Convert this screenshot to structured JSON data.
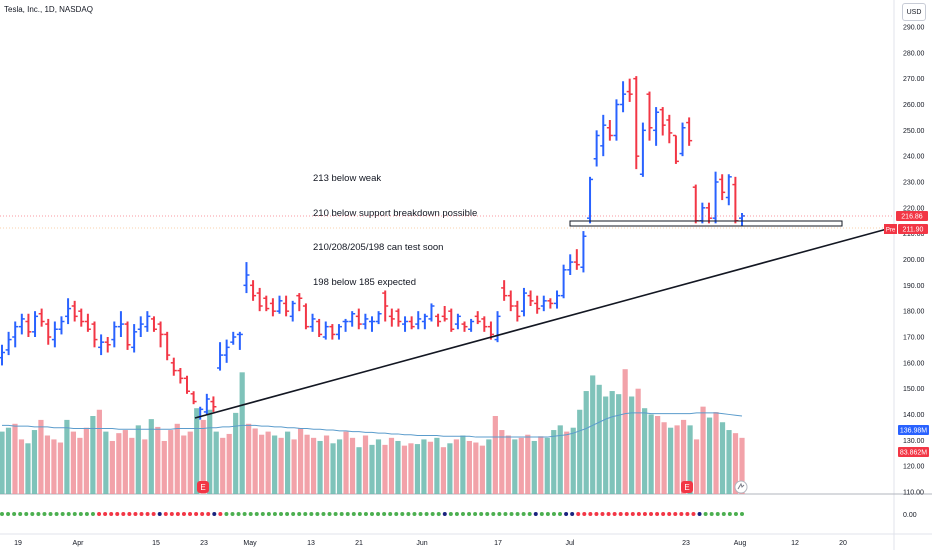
{
  "header": {
    "title": "Tesla, Inc., 1D, NASDAQ",
    "currency": "USD"
  },
  "annotation": {
    "lines": [
      "213 below weak",
      "210 below support breakdown possible",
      "210/208/205/198 can test soon",
      "198 below 185 expected"
    ]
  },
  "chart_data": {
    "type": "ohlc",
    "title": "Tesla, Inc., 1D, NASDAQ",
    "price_axis": {
      "ticks": [
        "290.00",
        "280.00",
        "270.00",
        "260.00",
        "250.00",
        "240.00",
        "230.00",
        "220.00",
        "210.00",
        "200.00",
        "190.00",
        "180.00",
        "170.00",
        "160.00",
        "150.00",
        "140.00",
        "130.00",
        "120.00",
        "110.00"
      ],
      "range": [
        106,
        294
      ]
    },
    "time_axis": {
      "ticks": [
        "19",
        "Apr",
        "15",
        "23",
        "May",
        "13",
        "21",
        "Jun",
        "17",
        "Jul",
        "23",
        "Aug",
        "12",
        "20"
      ]
    },
    "labels": {
      "last_price": "216.86",
      "pre_market_tag": "Pre",
      "pre_market_price": "211.90",
      "volume_label": "136.98M",
      "volume_ma_label": "83.862M",
      "oscillator_value": "0.00"
    },
    "colors": {
      "up": "#2962ff",
      "down": "#f23645",
      "vol_up": "#68b8ae",
      "vol_down": "#f0929a",
      "vol_ma": "#5b9ccc",
      "trendline": "#131722",
      "last_price": "#f23645",
      "pre_market": "#f23645",
      "dot_green": "#4caf50",
      "dot_red": "#f23645",
      "dot_navy": "#1a237e"
    },
    "bars": [
      {
        "o": 162,
        "h": 167,
        "l": 159,
        "c": 164
      },
      {
        "o": 165,
        "h": 172,
        "l": 163,
        "c": 169
      },
      {
        "o": 170,
        "h": 176,
        "l": 166,
        "c": 174
      },
      {
        "o": 174,
        "h": 179,
        "l": 171,
        "c": 177
      },
      {
        "o": 176,
        "h": 179,
        "l": 170,
        "c": 172
      },
      {
        "o": 172,
        "h": 180,
        "l": 170,
        "c": 178
      },
      {
        "o": 179,
        "h": 181,
        "l": 174,
        "c": 176
      },
      {
        "o": 175,
        "h": 177,
        "l": 167,
        "c": 170
      },
      {
        "o": 169,
        "h": 176,
        "l": 166,
        "c": 173
      },
      {
        "o": 173,
        "h": 178,
        "l": 171,
        "c": 176
      },
      {
        "o": 178,
        "h": 185,
        "l": 175,
        "c": 181
      },
      {
        "o": 182,
        "h": 184,
        "l": 176,
        "c": 178
      },
      {
        "o": 180,
        "h": 181,
        "l": 174,
        "c": 176
      },
      {
        "o": 176,
        "h": 179,
        "l": 172,
        "c": 173
      },
      {
        "o": 175,
        "h": 176,
        "l": 166,
        "c": 169
      },
      {
        "o": 166,
        "h": 171,
        "l": 163,
        "c": 168
      },
      {
        "o": 168,
        "h": 170,
        "l": 164,
        "c": 167
      },
      {
        "o": 169,
        "h": 176,
        "l": 166,
        "c": 174
      },
      {
        "o": 174,
        "h": 180,
        "l": 170,
        "c": 175
      },
      {
        "o": 175,
        "h": 176,
        "l": 165,
        "c": 167
      },
      {
        "o": 166,
        "h": 175,
        "l": 164,
        "c": 172
      },
      {
        "o": 173,
        "h": 178,
        "l": 170,
        "c": 175
      },
      {
        "o": 174,
        "h": 180,
        "l": 172,
        "c": 178
      },
      {
        "o": 177,
        "h": 178,
        "l": 172,
        "c": 173
      },
      {
        "o": 175,
        "h": 176,
        "l": 166,
        "c": 171
      },
      {
        "o": 171,
        "h": 172,
        "l": 161,
        "c": 163
      },
      {
        "o": 160,
        "h": 162,
        "l": 155,
        "c": 157
      },
      {
        "o": 157,
        "h": 158,
        "l": 152,
        "c": 154
      },
      {
        "o": 154,
        "h": 155,
        "l": 148,
        "c": 149
      },
      {
        "o": 148,
        "h": 149,
        "l": 144,
        "c": 145
      },
      {
        "o": 139,
        "h": 143,
        "l": 138,
        "c": 142
      },
      {
        "o": 141,
        "h": 148,
        "l": 140,
        "c": 146
      },
      {
        "o": 145,
        "h": 147,
        "l": 141,
        "c": 143
      },
      {
        "o": 158,
        "h": 168,
        "l": 157,
        "c": 163
      },
      {
        "o": 163,
        "h": 169,
        "l": 160,
        "c": 166
      },
      {
        "o": 168,
        "h": 172,
        "l": 167,
        "c": 170
      },
      {
        "o": 171,
        "h": 172,
        "l": 165,
        "c": 171
      },
      {
        "o": 190,
        "h": 199,
        "l": 187,
        "c": 194
      },
      {
        "o": 190,
        "h": 192,
        "l": 184,
        "c": 186
      },
      {
        "o": 187,
        "h": 189,
        "l": 180,
        "c": 182
      },
      {
        "o": 185,
        "h": 186,
        "l": 180,
        "c": 181
      },
      {
        "o": 183,
        "h": 185,
        "l": 178,
        "c": 180
      },
      {
        "o": 180,
        "h": 186,
        "l": 179,
        "c": 184
      },
      {
        "o": 183,
        "h": 186,
        "l": 178,
        "c": 180
      },
      {
        "o": 178,
        "h": 184,
        "l": 176,
        "c": 183
      },
      {
        "o": 186,
        "h": 187,
        "l": 180,
        "c": 185
      },
      {
        "o": 182,
        "h": 183,
        "l": 173,
        "c": 174
      },
      {
        "o": 174,
        "h": 179,
        "l": 172,
        "c": 177
      },
      {
        "o": 176,
        "h": 177,
        "l": 170,
        "c": 171
      },
      {
        "o": 170,
        "h": 176,
        "l": 169,
        "c": 174
      },
      {
        "o": 174,
        "h": 175,
        "l": 169,
        "c": 171
      },
      {
        "o": 171,
        "h": 175,
        "l": 169,
        "c": 174
      },
      {
        "o": 176,
        "h": 177,
        "l": 172,
        "c": 176
      },
      {
        "o": 176,
        "h": 180,
        "l": 174,
        "c": 179
      },
      {
        "o": 178,
        "h": 181,
        "l": 173,
        "c": 175
      },
      {
        "o": 175,
        "h": 179,
        "l": 173,
        "c": 177
      },
      {
        "o": 176,
        "h": 178,
        "l": 172,
        "c": 176
      },
      {
        "o": 176,
        "h": 180,
        "l": 175,
        "c": 179
      },
      {
        "o": 187,
        "h": 188,
        "l": 176,
        "c": 182
      },
      {
        "o": 178,
        "h": 181,
        "l": 174,
        "c": 177
      },
      {
        "o": 180,
        "h": 181,
        "l": 174,
        "c": 176
      },
      {
        "o": 175,
        "h": 178,
        "l": 172,
        "c": 176
      },
      {
        "o": 176,
        "h": 178,
        "l": 173,
        "c": 174
      },
      {
        "o": 175,
        "h": 180,
        "l": 173,
        "c": 177
      },
      {
        "o": 176,
        "h": 179,
        "l": 173,
        "c": 178
      },
      {
        "o": 177,
        "h": 183,
        "l": 176,
        "c": 182
      },
      {
        "o": 178,
        "h": 179,
        "l": 174,
        "c": 176
      },
      {
        "o": 178,
        "h": 182,
        "l": 176,
        "c": 177
      },
      {
        "o": 180,
        "h": 181,
        "l": 172,
        "c": 173
      },
      {
        "o": 175,
        "h": 179,
        "l": 173,
        "c": 178
      },
      {
        "o": 175,
        "h": 176,
        "l": 172,
        "c": 174
      },
      {
        "o": 173,
        "h": 177,
        "l": 172,
        "c": 176
      },
      {
        "o": 178,
        "h": 180,
        "l": 175,
        "c": 176
      },
      {
        "o": 177,
        "h": 178,
        "l": 172,
        "c": 174
      },
      {
        "o": 174,
        "h": 176,
        "l": 169,
        "c": 171
      },
      {
        "o": 169,
        "h": 180,
        "l": 168,
        "c": 178
      },
      {
        "o": 189,
        "h": 192,
        "l": 184,
        "c": 186
      },
      {
        "o": 186,
        "h": 188,
        "l": 180,
        "c": 182
      },
      {
        "o": 182,
        "h": 184,
        "l": 176,
        "c": 178
      },
      {
        "o": 180,
        "h": 189,
        "l": 178,
        "c": 187
      },
      {
        "o": 186,
        "h": 188,
        "l": 182,
        "c": 184
      },
      {
        "o": 183,
        "h": 186,
        "l": 179,
        "c": 181
      },
      {
        "o": 182,
        "h": 186,
        "l": 180,
        "c": 184
      },
      {
        "o": 184,
        "h": 185,
        "l": 181,
        "c": 183
      },
      {
        "o": 183,
        "h": 188,
        "l": 181,
        "c": 186
      },
      {
        "o": 186,
        "h": 198,
        "l": 185,
        "c": 196
      },
      {
        "o": 196,
        "h": 202,
        "l": 194,
        "c": 199
      },
      {
        "o": 199,
        "h": 204,
        "l": 196,
        "c": 198
      },
      {
        "o": 197,
        "h": 211,
        "l": 195,
        "c": 209
      },
      {
        "o": 216,
        "h": 232,
        "l": 214,
        "c": 231
      },
      {
        "o": 239,
        "h": 250,
        "l": 236,
        "c": 248
      },
      {
        "o": 244,
        "h": 256,
        "l": 240,
        "c": 252
      },
      {
        "o": 251,
        "h": 254,
        "l": 246,
        "c": 248
      },
      {
        "o": 248,
        "h": 262,
        "l": 246,
        "c": 260
      },
      {
        "o": 260,
        "h": 269,
        "l": 257,
        "c": 264
      },
      {
        "o": 265,
        "h": 270,
        "l": 261,
        "c": 264
      },
      {
        "o": 270,
        "h": 271,
        "l": 235,
        "c": 240
      },
      {
        "o": 233,
        "h": 253,
        "l": 232,
        "c": 250
      },
      {
        "o": 264,
        "h": 265,
        "l": 246,
        "c": 251
      },
      {
        "o": 250,
        "h": 259,
        "l": 244,
        "c": 257
      },
      {
        "o": 258,
        "h": 259,
        "l": 248,
        "c": 252
      },
      {
        "o": 254,
        "h": 256,
        "l": 245,
        "c": 249
      },
      {
        "o": 248,
        "h": 248,
        "l": 237,
        "c": 238
      },
      {
        "o": 241,
        "h": 253,
        "l": 240,
        "c": 251
      },
      {
        "o": 253,
        "h": 255,
        "l": 244,
        "c": 246
      },
      {
        "o": 228,
        "h": 229,
        "l": 214,
        "c": 215
      },
      {
        "o": 215,
        "h": 222,
        "l": 214,
        "c": 220
      },
      {
        "o": 220,
        "h": 222,
        "l": 214,
        "c": 216
      },
      {
        "o": 216,
        "h": 234,
        "l": 214,
        "c": 230
      },
      {
        "o": 231,
        "h": 233,
        "l": 223,
        "c": 226
      },
      {
        "o": 224,
        "h": 233,
        "l": 221,
        "c": 232
      },
      {
        "o": 229,
        "h": 232,
        "l": 214,
        "c": 215
      },
      {
        "o": 216,
        "h": 218,
        "l": 213,
        "c": 216.86
      }
    ],
    "volume": [
      {
        "v": 80,
        "d": 0
      },
      {
        "v": 85,
        "d": 0
      },
      {
        "v": 90,
        "d": 1
      },
      {
        "v": 70,
        "d": 1
      },
      {
        "v": 65,
        "d": 0
      },
      {
        "v": 82,
        "d": 0
      },
      {
        "v": 95,
        "d": 1
      },
      {
        "v": 75,
        "d": 1
      },
      {
        "v": 70,
        "d": 1
      },
      {
        "v": 66,
        "d": 1
      },
      {
        "v": 95,
        "d": 0
      },
      {
        "v": 80,
        "d": 1
      },
      {
        "v": 72,
        "d": 1
      },
      {
        "v": 85,
        "d": 1
      },
      {
        "v": 100,
        "d": 0
      },
      {
        "v": 108,
        "d": 1
      },
      {
        "v": 80,
        "d": 0
      },
      {
        "v": 68,
        "d": 1
      },
      {
        "v": 78,
        "d": 1
      },
      {
        "v": 82,
        "d": 1
      },
      {
        "v": 72,
        "d": 1
      },
      {
        "v": 88,
        "d": 0
      },
      {
        "v": 70,
        "d": 1
      },
      {
        "v": 96,
        "d": 0
      },
      {
        "v": 86,
        "d": 1
      },
      {
        "v": 68,
        "d": 1
      },
      {
        "v": 82,
        "d": 1
      },
      {
        "v": 90,
        "d": 1
      },
      {
        "v": 75,
        "d": 1
      },
      {
        "v": 80,
        "d": 1
      },
      {
        "v": 110,
        "d": 0
      },
      {
        "v": 95,
        "d": 1
      },
      {
        "v": 108,
        "d": 0
      },
      {
        "v": 80,
        "d": 0
      },
      {
        "v": 72,
        "d": 1
      },
      {
        "v": 77,
        "d": 1
      },
      {
        "v": 104,
        "d": 0
      },
      {
        "v": 156,
        "d": 0
      },
      {
        "v": 90,
        "d": 1
      },
      {
        "v": 84,
        "d": 1
      },
      {
        "v": 76,
        "d": 1
      },
      {
        "v": 80,
        "d": 1
      },
      {
        "v": 75,
        "d": 0
      },
      {
        "v": 72,
        "d": 1
      },
      {
        "v": 80,
        "d": 0
      },
      {
        "v": 70,
        "d": 1
      },
      {
        "v": 84,
        "d": 1
      },
      {
        "v": 76,
        "d": 1
      },
      {
        "v": 72,
        "d": 1
      },
      {
        "v": 68,
        "d": 0
      },
      {
        "v": 75,
        "d": 1
      },
      {
        "v": 65,
        "d": 0
      },
      {
        "v": 70,
        "d": 0
      },
      {
        "v": 80,
        "d": 1
      },
      {
        "v": 72,
        "d": 1
      },
      {
        "v": 60,
        "d": 0
      },
      {
        "v": 75,
        "d": 1
      },
      {
        "v": 63,
        "d": 0
      },
      {
        "v": 70,
        "d": 0
      },
      {
        "v": 63,
        "d": 1
      },
      {
        "v": 72,
        "d": 1
      },
      {
        "v": 68,
        "d": 0
      },
      {
        "v": 62,
        "d": 1
      },
      {
        "v": 65,
        "d": 1
      },
      {
        "v": 64,
        "d": 0
      },
      {
        "v": 70,
        "d": 0
      },
      {
        "v": 67,
        "d": 1
      },
      {
        "v": 72,
        "d": 0
      },
      {
        "v": 60,
        "d": 1
      },
      {
        "v": 65,
        "d": 0
      },
      {
        "v": 70,
        "d": 1
      },
      {
        "v": 75,
        "d": 0
      },
      {
        "v": 68,
        "d": 1
      },
      {
        "v": 66,
        "d": 1
      },
      {
        "v": 62,
        "d": 1
      },
      {
        "v": 70,
        "d": 0
      },
      {
        "v": 100,
        "d": 1
      },
      {
        "v": 82,
        "d": 1
      },
      {
        "v": 75,
        "d": 1
      },
      {
        "v": 70,
        "d": 0
      },
      {
        "v": 72,
        "d": 1
      },
      {
        "v": 76,
        "d": 1
      },
      {
        "v": 68,
        "d": 0
      },
      {
        "v": 74,
        "d": 1
      },
      {
        "v": 72,
        "d": 0
      },
      {
        "v": 82,
        "d": 0
      },
      {
        "v": 88,
        "d": 0
      },
      {
        "v": 80,
        "d": 1
      },
      {
        "v": 85,
        "d": 0
      },
      {
        "v": 108,
        "d": 0
      },
      {
        "v": 132,
        "d": 0
      },
      {
        "v": 152,
        "d": 0
      },
      {
        "v": 140,
        "d": 0
      },
      {
        "v": 125,
        "d": 0
      },
      {
        "v": 132,
        "d": 0
      },
      {
        "v": 128,
        "d": 0
      },
      {
        "v": 160,
        "d": 1
      },
      {
        "v": 125,
        "d": 0
      },
      {
        "v": 135,
        "d": 1
      },
      {
        "v": 110,
        "d": 0
      },
      {
        "v": 102,
        "d": 0
      },
      {
        "v": 100,
        "d": 1
      },
      {
        "v": 92,
        "d": 1
      },
      {
        "v": 85,
        "d": 0
      },
      {
        "v": 88,
        "d": 1
      },
      {
        "v": 95,
        "d": 1
      },
      {
        "v": 88,
        "d": 0
      },
      {
        "v": 70,
        "d": 1
      },
      {
        "v": 112,
        "d": 1
      },
      {
        "v": 98,
        "d": 0
      },
      {
        "v": 105,
        "d": 1
      },
      {
        "v": 92,
        "d": 0
      },
      {
        "v": 82,
        "d": 0
      },
      {
        "v": 78,
        "d": 1
      },
      {
        "v": 72,
        "d": 1
      }
    ],
    "volume_ma": [
      88,
      88,
      87,
      87,
      87,
      86,
      86,
      86,
      85,
      85,
      85,
      84,
      84,
      84,
      84,
      84,
      84,
      84,
      83,
      83,
      83,
      83,
      83,
      83,
      83,
      83,
      83,
      84,
      84,
      84,
      84,
      84,
      85,
      85,
      86,
      86,
      87,
      88,
      88,
      88,
      87,
      87,
      86,
      86,
      85,
      85,
      84,
      84,
      83,
      83,
      82,
      82,
      81,
      81,
      80,
      80,
      79,
      79,
      78,
      78,
      77,
      77,
      76,
      76,
      75,
      75,
      75,
      75,
      74,
      74,
      74,
      74,
      74,
      73,
      73,
      73,
      73,
      73,
      73,
      73,
      73,
      73,
      73,
      73,
      73,
      74,
      75,
      76,
      78,
      81,
      84,
      88,
      92,
      96,
      99,
      101,
      103,
      104,
      104,
      104,
      103,
      103,
      103,
      103,
      103,
      103,
      103,
      104,
      104,
      104,
      104,
      103,
      102,
      101,
      100
    ],
    "oscillator_dots": "ggggggggggggggggrrrrrrrrrrnrrrrrrrrnrggggggggggggggggggggggggggggggggggggnggggggggggggggnggggnnrrrrrrrrrrrrrrrrrrrrnggggggg",
    "ohlc_ylim": [
      106,
      294
    ]
  }
}
